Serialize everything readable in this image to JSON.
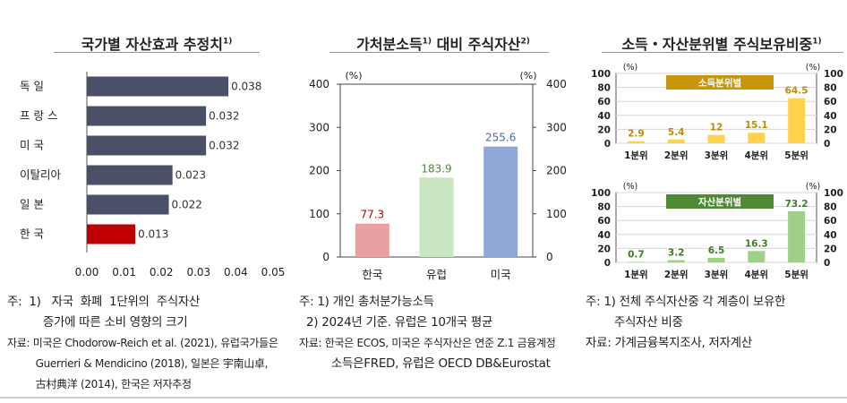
{
  "panels": [
    {
      "title": "국가별 자산효과 추정치",
      "title_sup": "1)",
      "notes": [
        "주:  1)   자국  화폐  1단위의  주식자산",
        "          증가에 따른 소비 영향의 크기",
        "자료: 미국은 Chodorow-Reich et al. (2021), 유럽국가들은",
        "         Guerrieri & Mendicino (2018), 일본은 宇南山卓,",
        "         古村典洋 (2014), 한국은 저자추정"
      ]
    },
    {
      "title": "가처분소득",
      "title_sup": "1)",
      "title_rest": " 대비 주식자산",
      "title_sup2": "2)",
      "notes": [
        "주: 1) 개인 총처분가능소득",
        "  2) 2024년 기준. 유럽은 10개국 평균",
        "자료: 한국은 ECOS, 미국은 주식자산은 연준 Z.1 금융계정",
        "         소득은FRED, 유럽은 OECD DB&Eurostat"
      ]
    },
    {
      "title": "소득・자산분위별 주식보유비중",
      "title_sup": "1)",
      "notes": [
        "주: 1) 전체 주식자산중 각 계층이 보유한",
        "        주식자산 비중",
        "자료: 가계금융복지조사, 저자계산"
      ]
    }
  ],
  "chart_data": [
    {
      "type": "bar",
      "orientation": "horizontal",
      "categories": [
        "독  일",
        "프 랑 스",
        "미  국",
        "이탈리아",
        "일  본",
        "한  국"
      ],
      "values": [
        0.038,
        0.032,
        0.032,
        0.023,
        0.022,
        0.013
      ],
      "value_labels": [
        "0.038",
        "0.032",
        "0.032",
        "0.023",
        "0.022",
        "0.013"
      ],
      "colors": [
        "#4a5068",
        "#4a5068",
        "#4a5068",
        "#4a5068",
        "#4a5068",
        "#c00000"
      ],
      "xlim": [
        0,
        0.05
      ],
      "x_ticks": [
        "0.00",
        "0.01",
        "0.02",
        "0.03",
        "0.04",
        "0.05"
      ]
    },
    {
      "type": "bar",
      "categories": [
        "한국",
        "유럽",
        "미국"
      ],
      "values": [
        77.3,
        183.9,
        255.6
      ],
      "value_labels": [
        "77.3",
        "183.9",
        "255.6"
      ],
      "colors": [
        "#e8a0a0",
        "#c8e6c0",
        "#8fa8d8"
      ],
      "label_colors": [
        "#c00000",
        "#4f8a3a",
        "#4a6aa8"
      ],
      "ylim": [
        0,
        400
      ],
      "y_ticks": [
        "0",
        "100",
        "200",
        "300",
        "400"
      ],
      "unit_left": "(%)",
      "unit_right": "(%)"
    },
    {
      "type": "bar",
      "legend": "소득분위별",
      "categories": [
        "1분위",
        "2분위",
        "3분위",
        "4분위",
        "5분위"
      ],
      "values": [
        2.9,
        5.4,
        12,
        15.1,
        64.5
      ],
      "value_labels": [
        "2.9",
        "5.4",
        "12",
        "15.1",
        "64.5"
      ],
      "color": "#ffd24d",
      "label_color": "#c08a00",
      "legend_color": "#c8960a",
      "ylim": [
        0,
        100
      ],
      "y_ticks": [
        "0",
        "20",
        "40",
        "60",
        "80",
        "100"
      ],
      "unit_left": "(%)",
      "unit_right": "(%)"
    },
    {
      "type": "bar",
      "legend": "자산분위별",
      "categories": [
        "1분위",
        "2분위",
        "3분위",
        "4분위",
        "5분위"
      ],
      "values": [
        0.7,
        3.2,
        6.5,
        16.3,
        73.2
      ],
      "value_labels": [
        "0.7",
        "3.2",
        "6.5",
        "16.3",
        "73.2"
      ],
      "color": "#9fd08a",
      "label_color": "#3e7a2a",
      "legend_color": "#4e8a34",
      "ylim": [
        0,
        100
      ],
      "y_ticks": [
        "0",
        "20",
        "40",
        "60",
        "80",
        "100"
      ],
      "unit_left": "(%)",
      "unit_right": "(%)"
    }
  ]
}
